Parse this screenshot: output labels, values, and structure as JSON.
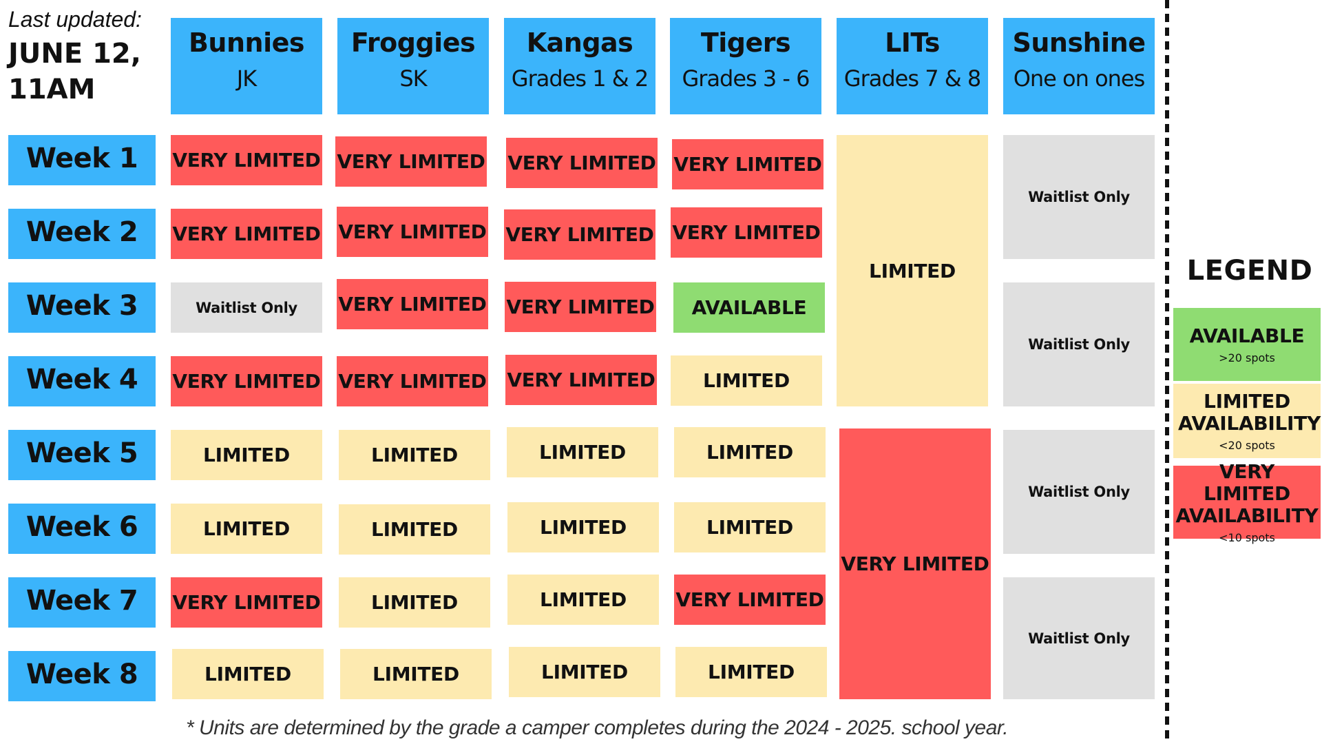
{
  "last_updated": {
    "label": "Last updated:",
    "value": "JUNE 12, 11AM"
  },
  "columns": [
    {
      "name": "Bunnies",
      "sub": "JK"
    },
    {
      "name": "Froggies",
      "sub": "SK"
    },
    {
      "name": "Kangas",
      "sub": "Grades 1 & 2"
    },
    {
      "name": "Tigers",
      "sub": "Grades 3 - 6"
    },
    {
      "name": "LITs",
      "sub": "Grades 7 & 8"
    },
    {
      "name": "Sunshine",
      "sub": "One on ones"
    }
  ],
  "rows": [
    "Week 1",
    "Week 2",
    "Week 3",
    "Week 4",
    "Week 5",
    "Week 6",
    "Week 7",
    "Week 8"
  ],
  "cells": {
    "bunnies": [
      "VERY LIMITED",
      "VERY LIMITED",
      "Waitlist Only",
      "VERY LIMITED",
      "LIMITED",
      "LIMITED",
      "VERY LIMITED",
      "LIMITED"
    ],
    "froggies": [
      "VERY LIMITED",
      "VERY LIMITED",
      "VERY LIMITED",
      "VERY LIMITED",
      "LIMITED",
      "LIMITED",
      "LIMITED",
      "LIMITED"
    ],
    "kangas": [
      "VERY LIMITED",
      "VERY LIMITED",
      "VERY LIMITED",
      "VERY LIMITED",
      "LIMITED",
      "LIMITED",
      "LIMITED",
      "LIMITED"
    ],
    "tigers": [
      "VERY LIMITED",
      "VERY LIMITED",
      "AVAILABLE",
      "LIMITED",
      "LIMITED",
      "LIMITED",
      "VERY LIMITED",
      "LIMITED"
    ],
    "lits": [
      "LIMITED",
      "VERY LIMITED"
    ],
    "sunshine": [
      "Waitlist Only",
      "Waitlist Only",
      "Waitlist Only",
      "Waitlist Only"
    ]
  },
  "legend": {
    "title": "LEGEND",
    "items": [
      {
        "label": "AVAILABLE",
        "detail": ">20 spots",
        "color": "#8fdc72"
      },
      {
        "label": "LIMITED AVAILABILITY",
        "detail": "<20 spots",
        "color": "#fdeab0"
      },
      {
        "label": "VERY LIMITED AVAILABILITY",
        "detail": "<10 spots",
        "color": "#ff5a5a"
      }
    ]
  },
  "colors": {
    "header": "#3bb4fb",
    "very_limited": "#ff5a5a",
    "limited": "#fdeab0",
    "available": "#8fdc72",
    "waitlist": "#e0e0e0"
  },
  "footnote": "* Units are determined by the grade a camper completes during the 2024 - 2025. school year."
}
